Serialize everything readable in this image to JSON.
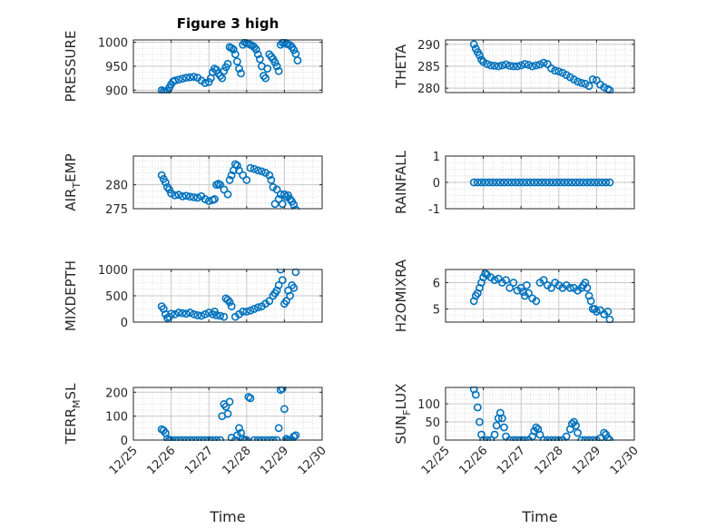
{
  "figure": {
    "title": "Figure 3 high",
    "xlabel": "Time",
    "marker_color": "#0072BD",
    "axis_color": "#262626",
    "grid_color": "#dcdcdc"
  },
  "chart_data": [
    {
      "type": "scatter",
      "ylabel": "PRESSURE",
      "ylabel_sub": "",
      "ylabel_rest": "",
      "ylim": [
        895,
        1005
      ],
      "yticks": [
        900,
        950,
        1000
      ],
      "ytick_labels": [
        "900",
        "950",
        "1000"
      ],
      "xlim": [
        25,
        30
      ],
      "xticks": [
        25,
        26,
        27,
        28,
        29,
        30
      ],
      "xtick_labels": [
        "12/25",
        "12/26",
        "12/27",
        "12/28",
        "12/29",
        "12/30"
      ],
      "show_xtick_labels": false,
      "x": [
        25.75,
        25.8,
        25.85,
        25.9,
        25.95,
        26.0,
        26.05,
        26.1,
        26.2,
        26.3,
        26.4,
        26.5,
        26.6,
        26.7,
        26.8,
        26.9,
        27.0,
        27.05,
        27.1,
        27.15,
        27.2,
        27.25,
        27.3,
        27.35,
        27.4,
        27.45,
        27.5,
        27.55,
        27.6,
        27.65,
        27.7,
        27.75,
        27.8,
        27.85,
        27.9,
        27.95,
        28.0,
        28.05,
        28.1,
        28.15,
        28.2,
        28.25,
        28.3,
        28.35,
        28.4,
        28.45,
        28.5,
        28.55,
        28.6,
        28.65,
        28.7,
        28.75,
        28.8,
        28.85,
        28.9,
        28.95,
        29.0,
        29.05,
        29.1,
        29.15,
        29.2,
        29.25,
        29.3,
        29.35
      ],
      "y": [
        900,
        898,
        897,
        899,
        905,
        912,
        918,
        920,
        922,
        924,
        926,
        927,
        928,
        926,
        920,
        915,
        917,
        925,
        938,
        945,
        942,
        935,
        930,
        925,
        940,
        948,
        955,
        990,
        988,
        985,
        975,
        960,
        945,
        935,
        995,
        1000,
        998,
        997,
        995,
        993,
        990,
        985,
        975,
        965,
        950,
        930,
        925,
        945,
        975,
        970,
        965,
        958,
        950,
        940,
        995,
        999,
        1000,
        997,
        996,
        994,
        990,
        984,
        976,
        962
      ]
    },
    {
      "type": "scatter",
      "ylabel": "THETA",
      "ylabel_sub": "",
      "ylabel_rest": "",
      "ylim": [
        279,
        291
      ],
      "yticks": [
        280,
        285,
        290
      ],
      "ytick_labels": [
        "280",
        "285",
        "290"
      ],
      "xlim": [
        25,
        30
      ],
      "xticks": [
        25,
        26,
        27,
        28,
        29,
        30
      ],
      "xtick_labels": [
        "12/25",
        "12/26",
        "12/27",
        "12/28",
        "12/29",
        "12/30"
      ],
      "show_xtick_labels": false,
      "x": [
        25.75,
        25.8,
        25.85,
        25.9,
        25.95,
        26.0,
        26.1,
        26.2,
        26.3,
        26.4,
        26.5,
        26.6,
        26.7,
        26.8,
        26.9,
        27.0,
        27.1,
        27.2,
        27.3,
        27.4,
        27.5,
        27.6,
        27.7,
        27.8,
        27.9,
        28.0,
        28.1,
        28.2,
        28.3,
        28.4,
        28.5,
        28.6,
        28.7,
        28.8,
        28.9,
        29.0,
        29.1,
        29.2,
        29.3,
        29.35
      ],
      "y": [
        290,
        289,
        288.2,
        287.5,
        286.5,
        286,
        285.5,
        285.2,
        285.1,
        285,
        285.2,
        285.4,
        285.1,
        285,
        285,
        285.2,
        285.5,
        285.3,
        285,
        285.2,
        285.4,
        285.8,
        285.5,
        284.5,
        284,
        283.8,
        283.5,
        283,
        282.5,
        282,
        281.5,
        281.2,
        281,
        280.5,
        282,
        281.8,
        280.8,
        280.2,
        279.8,
        279.5
      ]
    },
    {
      "type": "scatter",
      "ylabel": "AIR",
      "ylabel_sub": "T",
      "ylabel_rest": "EMP",
      "ylim": [
        275,
        286
      ],
      "yticks": [
        275,
        280
      ],
      "ytick_labels": [
        "275",
        "280"
      ],
      "xlim": [
        25,
        30
      ],
      "xticks": [
        25,
        26,
        27,
        28,
        29,
        30
      ],
      "xtick_labels": [
        "12/25",
        "12/26",
        "12/27",
        "12/28",
        "12/29",
        "12/30"
      ],
      "show_xtick_labels": false,
      "x": [
        25.75,
        25.8,
        25.85,
        25.9,
        25.95,
        26.0,
        26.1,
        26.2,
        26.3,
        26.4,
        26.5,
        26.6,
        26.7,
        26.8,
        26.9,
        27.0,
        27.1,
        27.15,
        27.2,
        27.25,
        27.3,
        27.4,
        27.5,
        27.55,
        27.6,
        27.65,
        27.7,
        27.75,
        27.8,
        27.9,
        28.0,
        28.1,
        28.2,
        28.3,
        28.4,
        28.5,
        28.6,
        28.65,
        28.7,
        28.75,
        28.8,
        28.85,
        28.9,
        28.95,
        29.0,
        29.05,
        29.1,
        29.15,
        29.2,
        29.25,
        29.3
      ],
      "y": [
        282,
        281.2,
        280.5,
        279.5,
        279,
        278.2,
        277.8,
        277.9,
        277.6,
        277.7,
        277.5,
        277.4,
        277.3,
        277.6,
        277,
        276.6,
        276.8,
        277,
        280,
        280.2,
        280,
        279,
        278,
        281,
        282,
        283,
        284.3,
        284,
        283,
        282,
        281,
        283.5,
        283.3,
        283,
        282.8,
        282.5,
        282,
        281,
        279.5,
        276,
        279,
        277,
        278,
        276,
        278,
        277.5,
        277.8,
        277,
        276.5,
        275.8,
        274.8
      ]
    },
    {
      "type": "scatter",
      "ylabel": "RAINFALL",
      "ylabel_sub": "",
      "ylabel_rest": "",
      "ylim": [
        -1,
        1
      ],
      "yticks": [
        -1,
        0,
        1
      ],
      "ytick_labels": [
        "-1",
        "0",
        "1"
      ],
      "xlim": [
        25,
        30
      ],
      "xticks": [
        25,
        26,
        27,
        28,
        29,
        30
      ],
      "xtick_labels": [
        "12/25",
        "12/26",
        "12/27",
        "12/28",
        "12/29",
        "12/30"
      ],
      "show_xtick_labels": false,
      "x": [
        25.75,
        25.85,
        25.95,
        26.05,
        26.15,
        26.25,
        26.35,
        26.45,
        26.55,
        26.65,
        26.75,
        26.85,
        26.95,
        27.05,
        27.15,
        27.25,
        27.35,
        27.45,
        27.55,
        27.65,
        27.75,
        27.85,
        27.95,
        28.05,
        28.15,
        28.25,
        28.35,
        28.45,
        28.55,
        28.65,
        28.75,
        28.85,
        28.95,
        29.05,
        29.15,
        29.25,
        29.35
      ],
      "y": [
        0,
        0,
        0,
        0,
        0,
        0,
        0,
        0,
        0,
        0,
        0,
        0,
        0,
        0,
        0,
        0,
        0,
        0,
        0,
        0,
        0,
        0,
        0,
        0,
        0,
        0,
        0,
        0,
        0,
        0,
        0,
        0,
        0,
        0,
        0,
        0,
        0
      ]
    },
    {
      "type": "scatter",
      "ylabel": "MIXDEPTH",
      "ylabel_sub": "",
      "ylabel_rest": "",
      "ylim": [
        0,
        1000
      ],
      "yticks": [
        0,
        500,
        1000
      ],
      "ytick_labels": [
        "0",
        "500",
        "1000"
      ],
      "xlim": [
        25,
        30
      ],
      "xticks": [
        25,
        26,
        27,
        28,
        29,
        30
      ],
      "xtick_labels": [
        "12/25",
        "12/26",
        "12/27",
        "12/28",
        "12/29",
        "12/30"
      ],
      "show_xtick_labels": false,
      "x": [
        25.75,
        25.8,
        25.85,
        25.9,
        25.95,
        26.0,
        26.1,
        26.2,
        26.3,
        26.4,
        26.5,
        26.6,
        26.7,
        26.8,
        26.9,
        27.0,
        27.1,
        27.15,
        27.2,
        27.3,
        27.4,
        27.45,
        27.5,
        27.55,
        27.6,
        27.7,
        27.8,
        27.9,
        28.0,
        28.1,
        28.2,
        28.3,
        28.4,
        28.5,
        28.6,
        28.7,
        28.75,
        28.8,
        28.85,
        28.9,
        28.95,
        29.0,
        29.05,
        29.1,
        29.15,
        29.2,
        29.25,
        29.3
      ],
      "y": [
        300,
        250,
        150,
        80,
        100,
        160,
        150,
        180,
        170,
        160,
        180,
        150,
        130,
        120,
        150,
        180,
        150,
        200,
        130,
        120,
        100,
        450,
        420,
        380,
        300,
        100,
        150,
        200,
        200,
        220,
        250,
        280,
        300,
        350,
        400,
        500,
        550,
        600,
        700,
        1000,
        800,
        350,
        400,
        600,
        500,
        700,
        650,
        950
      ]
    },
    {
      "type": "scatter",
      "ylabel": "H2OMIXRA",
      "ylabel_sub": "",
      "ylabel_rest": "",
      "ylim": [
        4.5,
        6.5
      ],
      "yticks": [
        5,
        6
      ],
      "ytick_labels": [
        "5",
        "6"
      ],
      "xlim": [
        25,
        30
      ],
      "xticks": [
        25,
        26,
        27,
        28,
        29,
        30
      ],
      "xtick_labels": [
        "12/25",
        "12/26",
        "12/27",
        "12/28",
        "12/29",
        "12/30"
      ],
      "show_xtick_labels": false,
      "x": [
        25.75,
        25.8,
        25.85,
        25.9,
        25.95,
        26.0,
        26.05,
        26.1,
        26.2,
        26.3,
        26.4,
        26.5,
        26.6,
        26.7,
        26.8,
        26.9,
        27.0,
        27.05,
        27.1,
        27.15,
        27.2,
        27.3,
        27.4,
        27.5,
        27.6,
        27.7,
        27.8,
        27.9,
        28.0,
        28.1,
        28.2,
        28.3,
        28.4,
        28.5,
        28.6,
        28.65,
        28.7,
        28.75,
        28.8,
        28.85,
        28.9,
        28.95,
        29.0,
        29.1,
        29.2,
        29.3,
        29.35
      ],
      "y": [
        5.3,
        5.5,
        5.6,
        5.8,
        6.0,
        6.2,
        6.35,
        6.3,
        6.2,
        6.1,
        6.15,
        6.0,
        6.1,
        5.8,
        6.0,
        5.7,
        5.8,
        5.65,
        5.5,
        5.9,
        5.6,
        5.4,
        5.3,
        6.0,
        6.1,
        5.9,
        5.8,
        6.0,
        5.9,
        5.8,
        5.9,
        5.8,
        5.8,
        5.7,
        5.8,
        5.9,
        6.0,
        5.8,
        5.5,
        5.3,
        5.0,
        5.0,
        4.9,
        4.95,
        4.8,
        4.9,
        4.6
      ]
    },
    {
      "type": "scatter",
      "ylabel": "TERR",
      "ylabel_sub": "M",
      "ylabel_rest": "SL",
      "ylim": [
        0,
        220
      ],
      "yticks": [
        0,
        100,
        200
      ],
      "ytick_labels": [
        "0",
        "100",
        "200"
      ],
      "xlim": [
        25,
        30
      ],
      "xticks": [
        25,
        26,
        27,
        28,
        29,
        30
      ],
      "xtick_labels": [
        "12/25",
        "12/26",
        "12/27",
        "12/28",
        "12/29",
        "12/30"
      ],
      "show_xtick_labels": true,
      "x": [
        25.75,
        25.8,
        25.85,
        25.9,
        25.95,
        26.0,
        26.1,
        26.2,
        26.3,
        26.4,
        26.5,
        26.6,
        26.7,
        26.8,
        26.9,
        27.0,
        27.1,
        27.2,
        27.3,
        27.35,
        27.4,
        27.45,
        27.5,
        27.55,
        27.6,
        27.7,
        27.75,
        27.8,
        27.85,
        27.9,
        27.95,
        28.0,
        28.05,
        28.1,
        28.2,
        28.3,
        28.4,
        28.5,
        28.6,
        28.7,
        28.8,
        28.85,
        28.9,
        28.95,
        29.0,
        29.05,
        29.1,
        29.15,
        29.2,
        29.25,
        29.3
      ],
      "y": [
        45,
        40,
        30,
        5,
        0,
        0,
        0,
        0,
        0,
        0,
        0,
        0,
        0,
        0,
        0,
        0,
        0,
        0,
        0,
        100,
        150,
        140,
        110,
        160,
        10,
        0,
        20,
        50,
        30,
        5,
        0,
        0,
        180,
        175,
        0,
        0,
        0,
        0,
        0,
        0,
        0,
        50,
        210,
        215,
        130,
        5,
        0,
        0,
        0,
        15,
        20
      ]
    },
    {
      "type": "scatter",
      "ylabel": "SUN",
      "ylabel_sub": "F",
      "ylabel_rest": "LUX",
      "ylim": [
        0,
        145
      ],
      "yticks": [
        0,
        50,
        100
      ],
      "ytick_labels": [
        "0",
        "50",
        "100"
      ],
      "xlim": [
        25,
        30
      ],
      "xticks": [
        25,
        26,
        27,
        28,
        29,
        30
      ],
      "xtick_labels": [
        "12/25",
        "12/26",
        "12/27",
        "12/28",
        "12/29",
        "12/30"
      ],
      "show_xtick_labels": true,
      "x": [
        25.75,
        25.8,
        25.85,
        25.9,
        25.95,
        26.0,
        26.1,
        26.2,
        26.3,
        26.35,
        26.4,
        26.45,
        26.5,
        26.55,
        26.6,
        26.7,
        26.8,
        26.9,
        27.0,
        27.1,
        27.2,
        27.3,
        27.35,
        27.4,
        27.45,
        27.5,
        27.6,
        27.7,
        27.8,
        27.9,
        28.0,
        28.1,
        28.2,
        28.3,
        28.35,
        28.4,
        28.45,
        28.5,
        28.6,
        28.7,
        28.8,
        28.9,
        29.0,
        29.1,
        29.2,
        29.25,
        29.3,
        29.35
      ],
      "y": [
        140,
        125,
        90,
        50,
        15,
        0,
        0,
        0,
        15,
        40,
        60,
        75,
        60,
        35,
        10,
        0,
        0,
        0,
        0,
        0,
        0,
        10,
        25,
        35,
        30,
        15,
        0,
        0,
        0,
        0,
        0,
        0,
        10,
        30,
        45,
        50,
        40,
        20,
        0,
        0,
        0,
        0,
        0,
        5,
        20,
        15,
        5,
        0
      ]
    }
  ]
}
